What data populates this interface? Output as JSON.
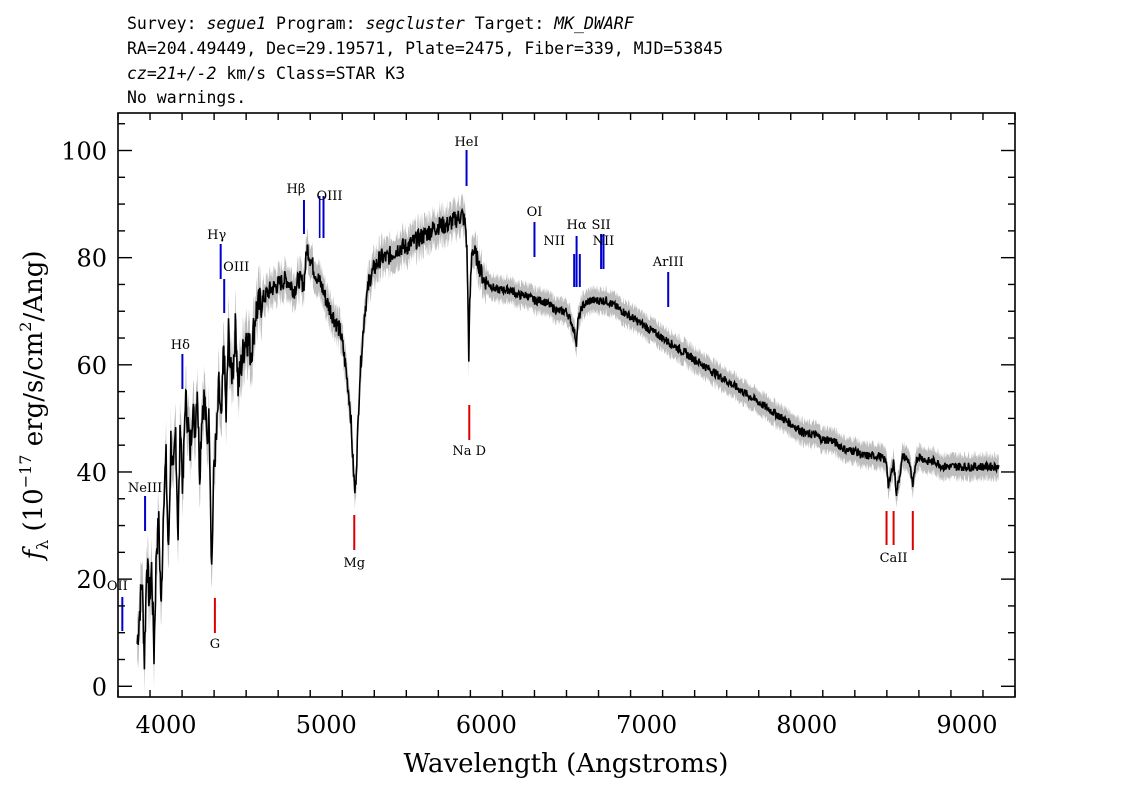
{
  "header": {
    "line1": {
      "survey_label": "Survey: ",
      "survey_value": "segue1",
      "program_label": " Program: ",
      "program_value": "segcluster",
      "target_label": " Target: ",
      "target_value": "MK_DWARF"
    },
    "line2": "RA=204.49449, Dec=29.19571, Plate=2475, Fiber=339, MJD=53845",
    "line3": {
      "cz_value": "cz=21+/-2",
      "rest": " km/s Class=STAR K3"
    },
    "line4": "No warnings."
  },
  "chart_data": {
    "type": "line",
    "xlabel": "Wavelength (Angstroms)",
    "ylabel": "f_λ (10^-17 erg/s/cm^2/Ang)",
    "ylabel_parts": {
      "f": "f",
      "lambda_sub": "λ",
      "open": " (10",
      "exp": "−17",
      "mid": " erg/s/cm",
      "sq": "2",
      "close": "/Ang)"
    },
    "xlim": [
      3700,
      9300
    ],
    "ylim": [
      -2,
      107
    ],
    "x_ticks": [
      4000,
      5000,
      6000,
      7000,
      8000,
      9000
    ],
    "y_ticks": [
      0,
      20,
      40,
      60,
      80,
      100
    ],
    "x_tick_labels": [
      "4000",
      "5000",
      "6000",
      "7000",
      "8000",
      "9000"
    ],
    "y_tick_labels": [
      "0",
      "20",
      "40",
      "60",
      "80",
      "100"
    ],
    "colors": {
      "spectrum": "#000000",
      "error_band": "#bdbdbd",
      "emission": "#0000cc",
      "absorption": "#dd0000"
    },
    "series": [
      {
        "x": [
          3820,
          3835,
          3850,
          3865,
          3880,
          3895,
          3910,
          3925,
          3940,
          3955,
          3970,
          3985,
          4000,
          4015,
          4030,
          4045,
          4060,
          4075,
          4090,
          4105,
          4120,
          4135,
          4150,
          4165,
          4180,
          4195,
          4210,
          4225,
          4240,
          4255,
          4270,
          4285,
          4300,
          4315,
          4330,
          4345,
          4360,
          4375,
          4390,
          4405,
          4420,
          4435,
          4450,
          4470,
          4500,
          4530,
          4560,
          4600,
          4650,
          4700,
          4750,
          4800,
          4830,
          4860,
          4880,
          4900,
          4920,
          4950,
          4980,
          5000,
          5030,
          5060,
          5090,
          5120,
          5150,
          5170,
          5180,
          5190,
          5210,
          5240,
          5270,
          5300,
          5340,
          5380,
          5420,
          5460,
          5500,
          5550,
          5600,
          5650,
          5700,
          5750,
          5800,
          5850,
          5870,
          5880,
          5890,
          5895,
          5910,
          5940,
          5980,
          6020,
          6060,
          6100,
          6150,
          6200,
          6250,
          6300,
          6350,
          6400,
          6450,
          6500,
          6530,
          6550,
          6563,
          6570,
          6600,
          6650,
          6700,
          6750,
          6800,
          6850,
          6900,
          6950,
          7000,
          7050,
          7100,
          7150,
          7200,
          7250,
          7300,
          7350,
          7400,
          7450,
          7500,
          7550,
          7600,
          7650,
          7700,
          7750,
          7800,
          7850,
          7900,
          7950,
          8000,
          8050,
          8100,
          8150,
          8200,
          8250,
          8300,
          8350,
          8400,
          8450,
          8498,
          8510,
          8542,
          8560,
          8600,
          8640,
          8662,
          8680,
          8700,
          8750,
          8800,
          8850,
          8900,
          8950,
          9000,
          9050,
          9100,
          9150,
          9200
        ],
        "y": [
          8,
          14,
          20,
          5,
          24,
          16,
          22,
          6,
          26,
          30,
          14,
          36,
          42,
          24,
          46,
          38,
          48,
          28,
          50,
          36,
          54,
          50,
          44,
          52,
          48,
          56,
          40,
          52,
          54,
          46,
          50,
          22,
          42,
          46,
          56,
          48,
          64,
          50,
          66,
          58,
          60,
          68,
          56,
          60,
          66,
          62,
          70,
          72,
          74,
          75,
          76,
          74,
          76,
          75,
          82,
          80,
          78,
          76,
          74,
          72,
          70,
          68,
          66,
          60,
          52,
          40,
          36,
          42,
          58,
          70,
          76,
          78,
          80,
          80,
          81,
          82,
          82,
          83,
          84,
          85,
          86,
          86,
          87,
          88,
          86,
          80,
          62,
          70,
          82,
          80,
          76,
          75,
          74,
          74,
          74,
          73,
          73,
          72,
          72,
          71,
          70,
          70,
          68,
          66,
          64,
          68,
          71,
          72,
          72,
          72,
          71,
          70,
          69,
          68,
          67,
          66,
          65,
          64,
          63,
          62,
          61,
          60,
          59,
          58,
          57,
          56,
          55,
          54,
          53,
          52,
          51,
          50,
          49,
          48,
          47,
          47,
          46,
          46,
          45,
          44,
          44,
          43,
          43,
          43,
          42,
          37,
          42,
          36,
          43,
          42,
          37,
          42,
          43,
          42,
          42,
          41,
          41,
          41,
          41,
          41,
          41,
          41,
          41
        ]
      }
    ],
    "line_labels": [
      {
        "name": "OII",
        "wave": 3727,
        "kind": "emission",
        "label": "OII"
      },
      {
        "name": "NeIII",
        "wave": 3869,
        "kind": "emission",
        "label": "NeIII"
      },
      {
        "name": "Hdelta",
        "wave": 4102,
        "kind": "emission",
        "label": "Hδ"
      },
      {
        "name": "G",
        "wave": 4305,
        "kind": "absorption",
        "label": "G"
      },
      {
        "name": "Hgamma",
        "wave": 4341,
        "kind": "emission",
        "label": "Hγ"
      },
      {
        "name": "OIII4363",
        "wave": 4363,
        "kind": "emission",
        "label": "OIII"
      },
      {
        "name": "Hbeta",
        "wave": 4861,
        "kind": "emission",
        "label": "Hβ"
      },
      {
        "name": "OIII5007",
        "wave": 4983,
        "kind": "emission",
        "label": "OIII"
      },
      {
        "name": "Mg",
        "wave": 5175,
        "kind": "absorption",
        "label": "Mg"
      },
      {
        "name": "HeI",
        "wave": 5876,
        "kind": "emission",
        "label": "HeI"
      },
      {
        "name": "NaD",
        "wave": 5893,
        "kind": "absorption",
        "label": "Na D"
      },
      {
        "name": "OI",
        "wave": 6300,
        "kind": "emission",
        "label": "OI"
      },
      {
        "name": "NII6548",
        "wave": 6548,
        "kind": "emission",
        "label": "NII"
      },
      {
        "name": "Halpha",
        "wave": 6563,
        "kind": "emission",
        "label": "Hα"
      },
      {
        "name": "NII6583",
        "wave": 6583,
        "kind": "emission",
        "label": ""
      },
      {
        "name": "SII",
        "wave": 6716,
        "kind": "emission",
        "label": "SII"
      },
      {
        "name": "NII6731",
        "wave": 6731,
        "kind": "emission",
        "label": "NII"
      },
      {
        "name": "ArIII",
        "wave": 7135,
        "kind": "emission",
        "label": "ArIII"
      },
      {
        "name": "CaII",
        "wave": 8542,
        "kind": "absorption",
        "label": "CaII"
      }
    ]
  }
}
